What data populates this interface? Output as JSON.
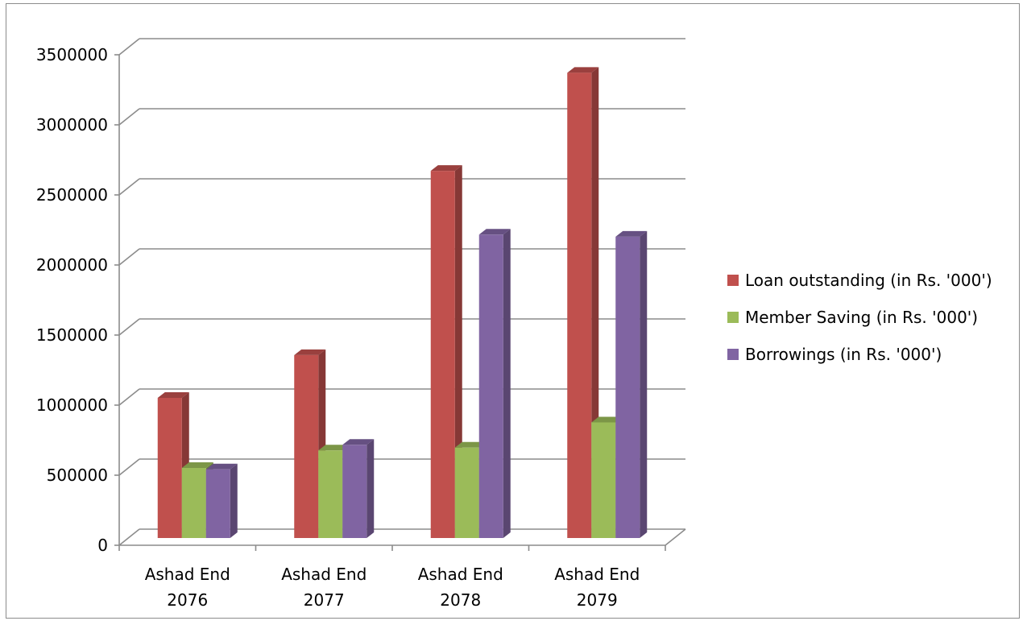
{
  "chart_data": {
    "type": "bar",
    "style": "3d-clustered-column",
    "title": "",
    "xlabel": "",
    "ylabel": "",
    "ylim": [
      0,
      3500000
    ],
    "ytick_values": [
      0,
      500000,
      1000000,
      1500000,
      2000000,
      2500000,
      3000000,
      3500000
    ],
    "ytick_labels": [
      "0",
      "500000",
      "1000000",
      "1500000",
      "2000000",
      "2500000",
      "3000000",
      "3500000"
    ],
    "grid": true,
    "legend_position": "right",
    "categories": [
      [
        "Ashad End",
        "2076"
      ],
      [
        "Ashad End",
        "2077"
      ],
      [
        "Ashad End",
        "2078"
      ],
      [
        "Ashad End",
        "2079"
      ]
    ],
    "series": [
      {
        "name": "Loan outstanding (in Rs. '000')",
        "color": "#C0504D",
        "values": [
          1000000,
          1305000,
          2620000,
          3320000
        ]
      },
      {
        "name": "Member Saving (in Rs. '000')",
        "color": "#9BBB59",
        "values": [
          500000,
          625000,
          645000,
          825000
        ]
      },
      {
        "name": "Borrowings (in Rs. '000')",
        "color": "#8064A2",
        "values": [
          490000,
          665000,
          2165000,
          2150000
        ]
      }
    ]
  }
}
